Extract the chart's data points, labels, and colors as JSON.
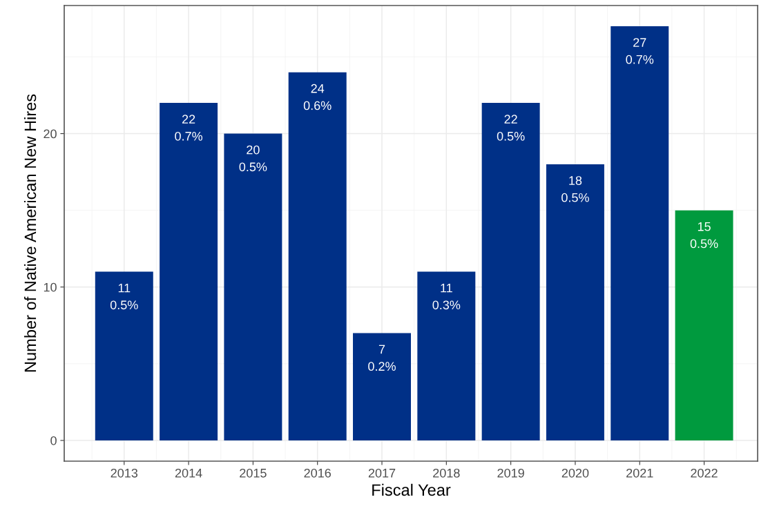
{
  "chart_data": {
    "type": "bar",
    "xlabel": "Fiscal Year",
    "ylabel": "Number of Native American New Hires",
    "categories": [
      "2013",
      "2014",
      "2015",
      "2016",
      "2017",
      "2018",
      "2019",
      "2020",
      "2021",
      "2022"
    ],
    "values": [
      11,
      22,
      20,
      24,
      7,
      11,
      22,
      18,
      27,
      15
    ],
    "colors": [
      "#003087",
      "#003087",
      "#003087",
      "#003087",
      "#003087",
      "#003087",
      "#003087",
      "#003087",
      "#003087",
      "#009a3e"
    ],
    "value_labels": [
      "11\n0.5%",
      "22\n0.7%",
      "20\n0.5%",
      "24\n0.6%",
      "7\n0.2%",
      "11\n0.3%",
      "22\n0.5%",
      "18\n0.5%",
      "27\n0.7%",
      "15\n0.5%"
    ],
    "ylim": [
      -1.35,
      28.35
    ],
    "yticks": [
      0,
      10,
      20
    ],
    "grid": true
  }
}
